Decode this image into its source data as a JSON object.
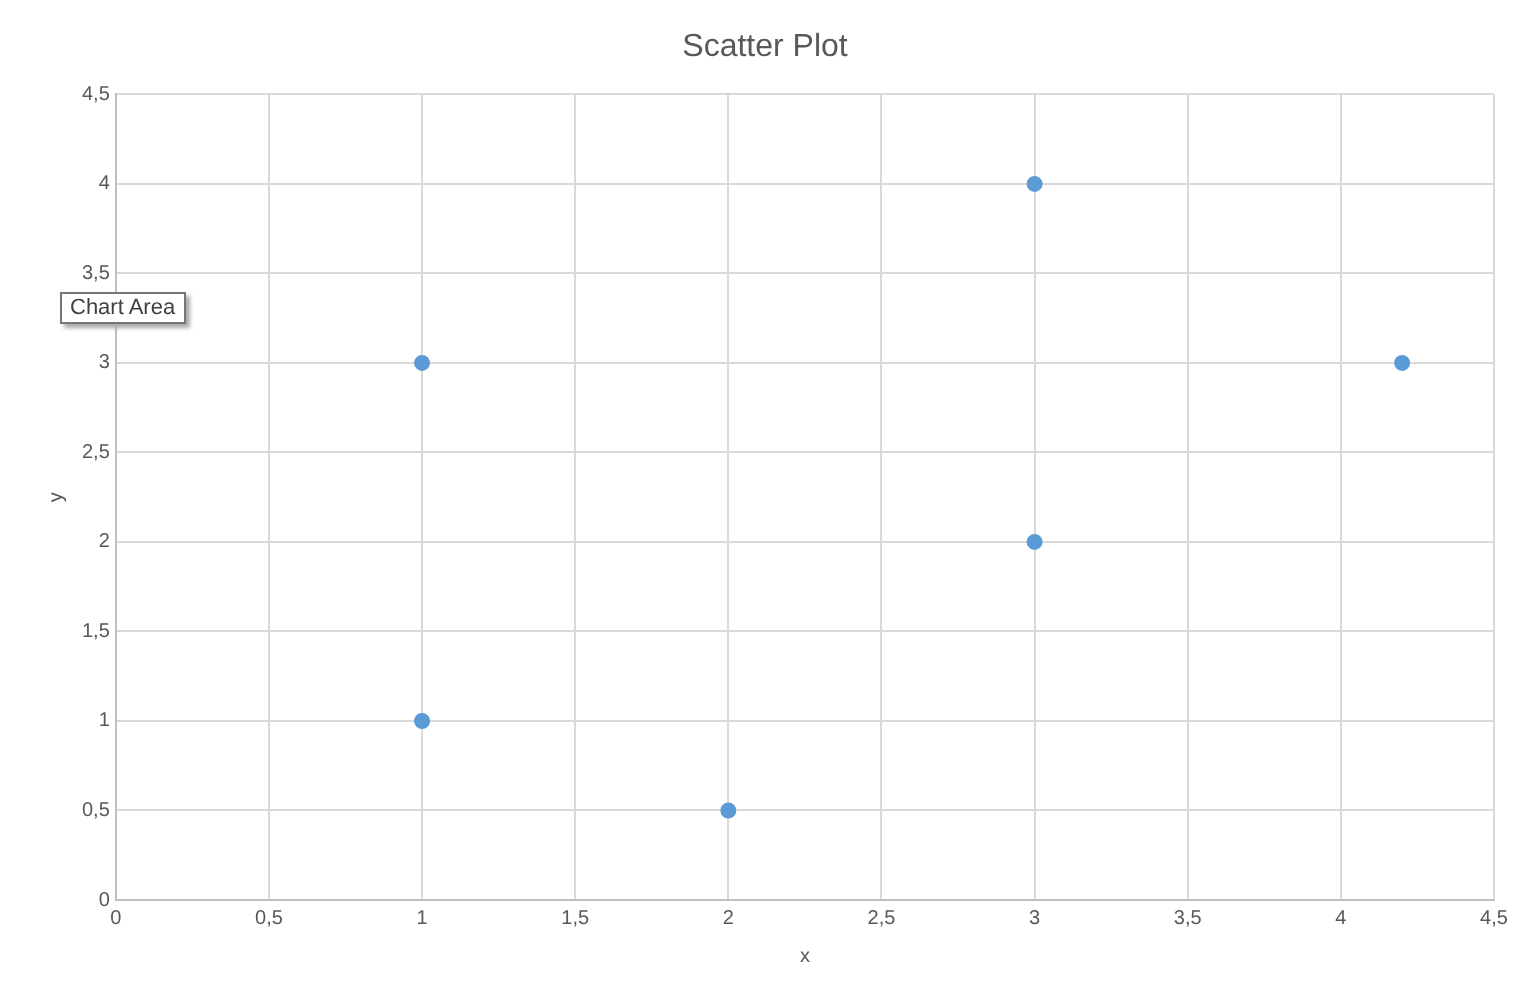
{
  "chart_data": {
    "type": "scatter",
    "title": "Scatter Plot",
    "xlabel": "x",
    "ylabel": "y",
    "x": [
      1,
      1,
      2,
      3,
      3,
      4.2
    ],
    "series": [
      {
        "color": "#5b9bd5",
        "values": [
          3,
          1,
          0.5,
          4,
          2,
          3
        ]
      }
    ],
    "xlim": [
      0,
      4.5
    ],
    "ylim": [
      0,
      4.5
    ],
    "xticks": [
      0,
      {
        "value": 0.5,
        "label": "0,5"
      },
      1,
      {
        "value": 1.5,
        "label": "1,5"
      },
      2,
      {
        "value": 2.5,
        "label": "2,5"
      },
      3,
      {
        "value": 3.5,
        "label": "3,5"
      },
      4,
      {
        "value": 4.5,
        "label": "4,5"
      }
    ],
    "yticks": [
      0,
      {
        "value": 0.5,
        "label": "0,5"
      },
      1,
      {
        "value": 1.5,
        "label": "1,5"
      },
      2,
      {
        "value": 2.5,
        "label": "2,5"
      },
      3,
      {
        "value": 3.5,
        "label": "3,5"
      },
      4,
      {
        "value": 4.5,
        "label": "4,5"
      }
    ],
    "grid": true,
    "legend": false,
    "marker": "circle",
    "annotations": [
      "Chart Area"
    ]
  }
}
